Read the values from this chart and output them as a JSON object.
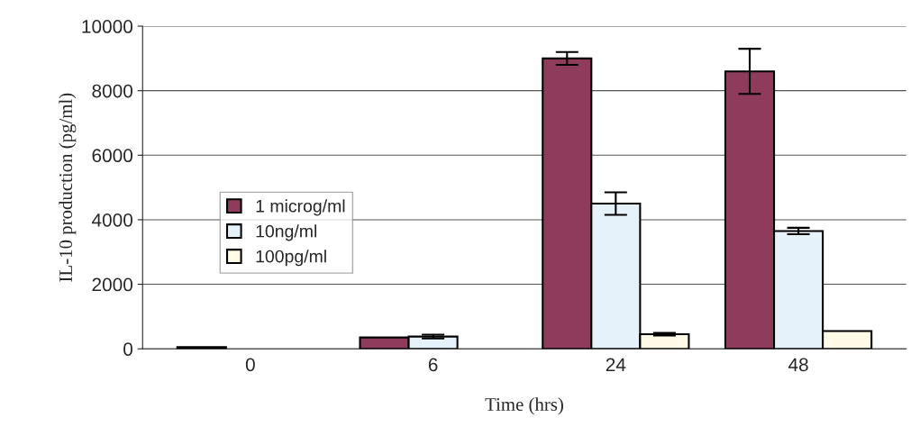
{
  "chart_data": {
    "type": "bar",
    "xlabel": "Time (hrs)",
    "ylabel": "IL-10 production (pg/ml)",
    "categories": [
      "0",
      "6",
      "24",
      "48"
    ],
    "series": [
      {
        "name": "1 microg/ml",
        "color": "#8e3b5c",
        "values": [
          50,
          350,
          9000,
          8600
        ],
        "errors": [
          null,
          null,
          200,
          700
        ]
      },
      {
        "name": "10ng/ml",
        "color": "#e6f2fa",
        "values": [
          null,
          380,
          4500,
          3650
        ],
        "errors": [
          null,
          60,
          350,
          100
        ]
      },
      {
        "name": "100pg/ml",
        "color": "#fffbe6",
        "values": [
          null,
          null,
          450,
          550
        ],
        "errors": [
          null,
          null,
          40,
          null
        ]
      }
    ],
    "ylim": [
      0,
      10000
    ],
    "yticks": [
      0,
      2000,
      4000,
      6000,
      8000,
      10000
    ],
    "grid": "y",
    "legend": "center left"
  }
}
